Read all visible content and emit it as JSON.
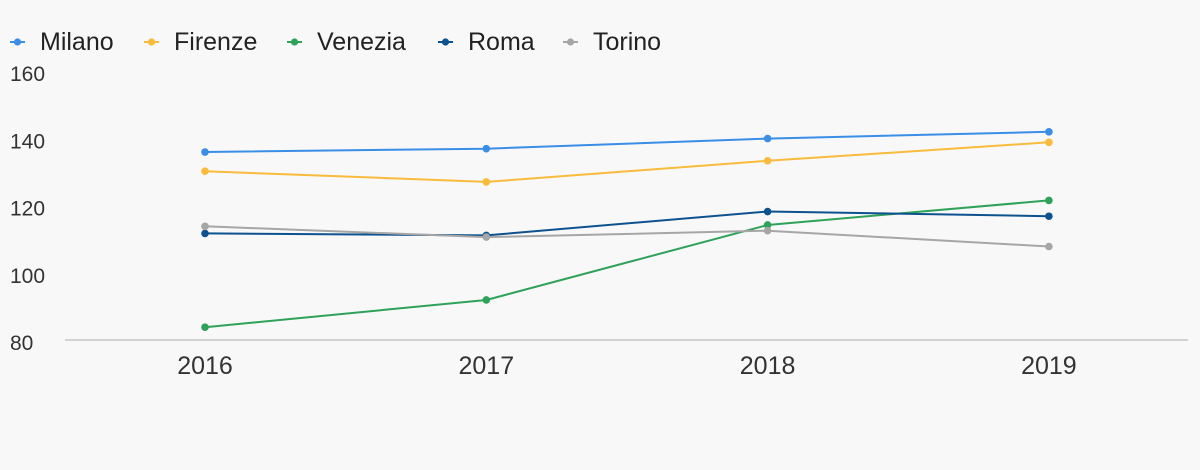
{
  "chart_data": {
    "type": "line",
    "title": "",
    "xlabel": "",
    "ylabel": "",
    "categories": [
      "2016",
      "2017",
      "2018",
      "2019"
    ],
    "ylim": [
      80,
      160
    ],
    "yticks": [
      80,
      100,
      120,
      140,
      160
    ],
    "grid": false,
    "legend_position": "top-left",
    "series": [
      {
        "name": "Milano",
        "color": "#3a8ee6",
        "values": [
          136.5,
          137.5,
          140.5,
          142.5
        ]
      },
      {
        "name": "Firenze",
        "color": "#f9bb3b",
        "values": [
          130.8,
          127.6,
          133.9,
          139.4
        ]
      },
      {
        "name": "Venezia",
        "color": "#2fa25a",
        "values": [
          84.4,
          92.5,
          114.8,
          122.1
        ]
      },
      {
        "name": "Roma",
        "color": "#0d528f",
        "values": [
          112.3,
          111.7,
          118.8,
          117.4
        ]
      },
      {
        "name": "Torino",
        "color": "#a6a6a6",
        "values": [
          114.4,
          111.2,
          113.1,
          108.4
        ]
      }
    ]
  }
}
